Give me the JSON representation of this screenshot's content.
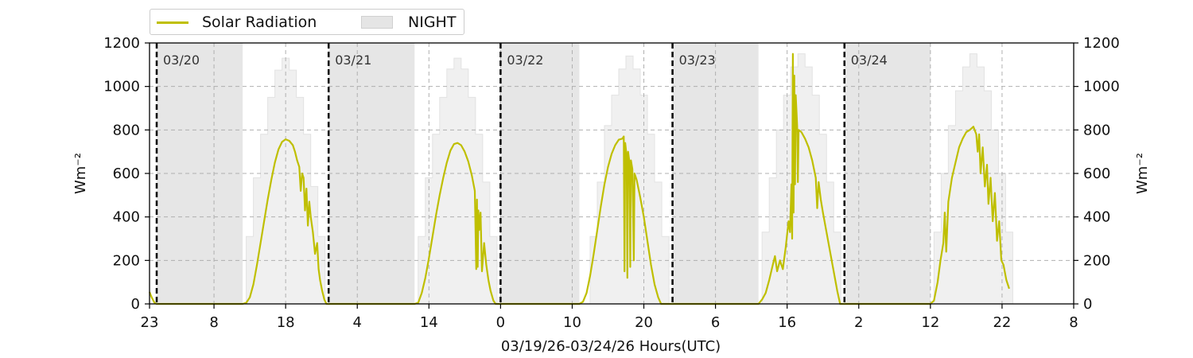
{
  "chart_data": {
    "type": "line",
    "xlabel": "03/19/26-03/24/26  Hours(UTC)",
    "ylabel_left": "Wm⁻²",
    "ylabel_right": "Wm⁻²",
    "ylim": [
      0,
      1200
    ],
    "yticks": [
      0,
      200,
      400,
      600,
      800,
      1000,
      1200
    ],
    "x_range_hours": [
      0,
      129
    ],
    "x_ticks": [
      {
        "h": 0,
        "label": "23"
      },
      {
        "h": 9,
        "label": "8"
      },
      {
        "h": 19,
        "label": "18"
      },
      {
        "h": 29,
        "label": "4"
      },
      {
        "h": 39,
        "label": "14"
      },
      {
        "h": 49,
        "label": "0"
      },
      {
        "h": 59,
        "label": "10"
      },
      {
        "h": 69,
        "label": "20"
      },
      {
        "h": 79,
        "label": "6"
      },
      {
        "h": 89,
        "label": "16"
      },
      {
        "h": 99,
        "label": "2"
      },
      {
        "h": 109,
        "label": "12"
      },
      {
        "h": 119,
        "label": "22"
      },
      {
        "h": 129,
        "label": "8"
      }
    ],
    "grid": true,
    "legend": {
      "placement": "top-left",
      "entries": [
        {
          "name": "Solar Radiation",
          "color": "#bfbf00"
        },
        {
          "name": "NIGHT",
          "color": "#e5e5e5"
        }
      ]
    },
    "day_markers": [
      {
        "h": 1,
        "label": "03/20"
      },
      {
        "h": 25,
        "label": "03/21"
      },
      {
        "h": 49,
        "label": "03/22"
      },
      {
        "h": 73,
        "label": "03/23"
      },
      {
        "h": 97,
        "label": "03/24"
      }
    ],
    "night_periods": [
      [
        1,
        13
      ],
      [
        25,
        37
      ],
      [
        49,
        60
      ],
      [
        73,
        85
      ],
      [
        97,
        109
      ]
    ],
    "clear_sky_reference": {
      "color": "#f0f0f0",
      "days": [
        {
          "start": 13.5,
          "values": [
            310,
            580,
            780,
            950,
            1075,
            1130,
            1075,
            950,
            780,
            540,
            310
          ]
        },
        {
          "start": 37.5,
          "values": [
            310,
            580,
            780,
            950,
            1080,
            1130,
            1080,
            950,
            780,
            560,
            310
          ]
        },
        {
          "start": 61.5,
          "values": [
            310,
            560,
            820,
            960,
            1080,
            1140,
            1080,
            960,
            780,
            560,
            310
          ]
        },
        {
          "start": 85.5,
          "values": [
            330,
            580,
            800,
            960,
            1090,
            1150,
            1090,
            960,
            780,
            560,
            330
          ]
        },
        {
          "start": 109.5,
          "values": [
            330,
            600,
            820,
            980,
            1090,
            1150,
            1090,
            980,
            800,
            600,
            330
          ]
        }
      ]
    },
    "series": [
      {
        "name": "Solar Radiation",
        "color": "#bfbf00",
        "points": [
          [
            0,
            55
          ],
          [
            0.3,
            30
          ],
          [
            0.7,
            5
          ],
          [
            1,
            0
          ],
          [
            13,
            0
          ],
          [
            13.5,
            5
          ],
          [
            14,
            30
          ],
          [
            14.5,
            90
          ],
          [
            15,
            180
          ],
          [
            15.5,
            280
          ],
          [
            16,
            380
          ],
          [
            16.5,
            480
          ],
          [
            17,
            570
          ],
          [
            17.5,
            650
          ],
          [
            18,
            710
          ],
          [
            18.5,
            745
          ],
          [
            19,
            757
          ],
          [
            19.5,
            750
          ],
          [
            20,
            730
          ],
          [
            20.3,
            700
          ],
          [
            20.6,
            660
          ],
          [
            20.9,
            630
          ],
          [
            21.1,
            520
          ],
          [
            21.3,
            600
          ],
          [
            21.5,
            580
          ],
          [
            21.7,
            430
          ],
          [
            21.9,
            530
          ],
          [
            22.1,
            360
          ],
          [
            22.3,
            470
          ],
          [
            22.5,
            400
          ],
          [
            22.8,
            330
          ],
          [
            23.1,
            230
          ],
          [
            23.4,
            280
          ],
          [
            23.6,
            160
          ],
          [
            23.8,
            110
          ],
          [
            24.1,
            60
          ],
          [
            24.4,
            20
          ],
          [
            24.7,
            0
          ],
          [
            37,
            0
          ],
          [
            37.5,
            5
          ],
          [
            38,
            50
          ],
          [
            38.5,
            120
          ],
          [
            39,
            210
          ],
          [
            39.5,
            310
          ],
          [
            40,
            410
          ],
          [
            40.5,
            500
          ],
          [
            41,
            580
          ],
          [
            41.5,
            650
          ],
          [
            42,
            705
          ],
          [
            42.5,
            735
          ],
          [
            43,
            740
          ],
          [
            43.5,
            730
          ],
          [
            44,
            700
          ],
          [
            44.5,
            655
          ],
          [
            45,
            590
          ],
          [
            45.4,
            520
          ],
          [
            45.6,
            160
          ],
          [
            45.7,
            480
          ],
          [
            45.8,
            170
          ],
          [
            45.9,
            430
          ],
          [
            46,
            340
          ],
          [
            46.2,
            420
          ],
          [
            46.4,
            150
          ],
          [
            46.7,
            280
          ],
          [
            47.0,
            180
          ],
          [
            47.3,
            110
          ],
          [
            47.6,
            60
          ],
          [
            48,
            15
          ],
          [
            48.3,
            0
          ],
          [
            60,
            0
          ],
          [
            60.5,
            10
          ],
          [
            61,
            50
          ],
          [
            61.5,
            130
          ],
          [
            62,
            230
          ],
          [
            62.5,
            340
          ],
          [
            63,
            450
          ],
          [
            63.5,
            550
          ],
          [
            64,
            630
          ],
          [
            64.5,
            690
          ],
          [
            65,
            730
          ],
          [
            65.5,
            755
          ],
          [
            66,
            760
          ],
          [
            66.2,
            770
          ],
          [
            66.3,
            150
          ],
          [
            66.4,
            740
          ],
          [
            66.6,
            680
          ],
          [
            66.7,
            120
          ],
          [
            66.8,
            700
          ],
          [
            67.0,
            650
          ],
          [
            67.1,
            170
          ],
          [
            67.2,
            660
          ],
          [
            67.4,
            620
          ],
          [
            67.6,
            200
          ],
          [
            67.7,
            600
          ],
          [
            68,
            570
          ],
          [
            68.5,
            490
          ],
          [
            69,
            400
          ],
          [
            69.5,
            290
          ],
          [
            70,
            180
          ],
          [
            70.5,
            90
          ],
          [
            71,
            30
          ],
          [
            71.4,
            0
          ],
          [
            85,
            0
          ],
          [
            85.5,
            20
          ],
          [
            86,
            50
          ],
          [
            86.5,
            110
          ],
          [
            87,
            180
          ],
          [
            87.3,
            220
          ],
          [
            87.6,
            150
          ],
          [
            88,
            200
          ],
          [
            88.4,
            160
          ],
          [
            88.8,
            260
          ],
          [
            89.2,
            380
          ],
          [
            89.4,
            330
          ],
          [
            89.6,
            550
          ],
          [
            89.7,
            300
          ],
          [
            89.8,
            1150
          ],
          [
            89.9,
            420
          ],
          [
            90,
            1050
          ],
          [
            90.1,
            550
          ],
          [
            90.2,
            960
          ],
          [
            90.4,
            820
          ],
          [
            90.5,
            560
          ],
          [
            90.6,
            800
          ],
          [
            91,
            790
          ],
          [
            91.5,
            760
          ],
          [
            92,
            720
          ],
          [
            92.5,
            660
          ],
          [
            93,
            580
          ],
          [
            93.2,
            440
          ],
          [
            93.4,
            560
          ],
          [
            93.7,
            480
          ],
          [
            94,
            420
          ],
          [
            94.5,
            330
          ],
          [
            95,
            240
          ],
          [
            95.5,
            150
          ],
          [
            96,
            60
          ],
          [
            96.4,
            0
          ],
          [
            109,
            0
          ],
          [
            109.5,
            15
          ],
          [
            110,
            100
          ],
          [
            110.4,
            200
          ],
          [
            110.8,
            280
          ],
          [
            111.0,
            420
          ],
          [
            111.2,
            240
          ],
          [
            111.5,
            470
          ],
          [
            112,
            580
          ],
          [
            112.5,
            650
          ],
          [
            113,
            720
          ],
          [
            113.5,
            760
          ],
          [
            114,
            790
          ],
          [
            114.5,
            800
          ],
          [
            115,
            815
          ],
          [
            115.4,
            780
          ],
          [
            115.6,
            700
          ],
          [
            115.8,
            780
          ],
          [
            116,
            600
          ],
          [
            116.3,
            720
          ],
          [
            116.6,
            540
          ],
          [
            116.9,
            640
          ],
          [
            117.1,
            460
          ],
          [
            117.4,
            580
          ],
          [
            117.7,
            380
          ],
          [
            118,
            510
          ],
          [
            118.3,
            290
          ],
          [
            118.6,
            380
          ],
          [
            118.9,
            200
          ],
          [
            119.2,
            180
          ],
          [
            119.6,
            110
          ],
          [
            120,
            70
          ]
        ]
      }
    ]
  }
}
